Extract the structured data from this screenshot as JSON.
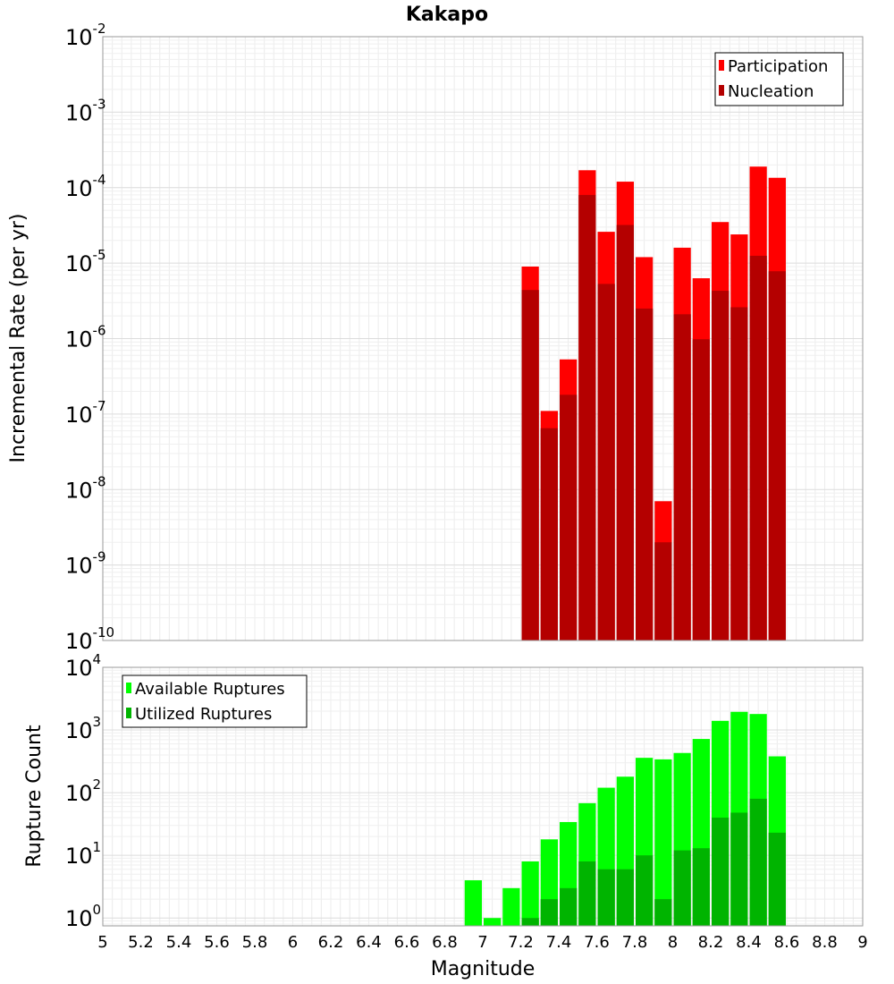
{
  "chart_data": [
    {
      "type": "bar",
      "title": "Kakapo",
      "xlabel": "",
      "ylabel": "Incremental Rate (per yr)",
      "yscale": "log",
      "ylim": [
        1e-10,
        0.01
      ],
      "xlim": [
        5,
        9
      ],
      "grid": true,
      "legend_position": "top-right",
      "bar_width": 0.1,
      "x": [
        7.25,
        7.35,
        7.45,
        7.55,
        7.65,
        7.75,
        7.85,
        7.95,
        8.05,
        8.15,
        8.25,
        8.35,
        8.45,
        8.55
      ],
      "series": [
        {
          "name": "Participation",
          "color": "#ff0000",
          "values": [
            9e-06,
            1.1e-07,
            5.3e-07,
            0.00017,
            2.6e-05,
            0.00012,
            1.2e-05,
            7e-09,
            1.6e-05,
            6.3e-06,
            3.5e-05,
            2.4e-05,
            0.00019,
            0.000135
          ]
        },
        {
          "name": "Nucleation",
          "color": "#b40000",
          "values": [
            4.4e-06,
            6.5e-08,
            1.8e-07,
            8e-05,
            5.3e-06,
            3.2e-05,
            2.5e-06,
            2e-09,
            2.1e-06,
            9.8e-07,
            4.3e-06,
            2.6e-06,
            1.25e-05,
            7.8e-06
          ]
        }
      ]
    },
    {
      "type": "bar",
      "title": "",
      "xlabel": "Magnitude",
      "ylabel": "Rupture Count",
      "yscale": "log",
      "ylim": [
        0.75,
        10000
      ],
      "xlim": [
        5,
        9
      ],
      "xticks": [
        "5",
        "5.2",
        "5.4",
        "5.6",
        "5.8",
        "6",
        "6.2",
        "6.4",
        "6.6",
        "6.8",
        "7",
        "7.2",
        "7.4",
        "7.6",
        "7.8",
        "8",
        "8.2",
        "8.4",
        "8.6",
        "8.8",
        "9"
      ],
      "grid": true,
      "legend_position": "top-left",
      "bar_width": 0.1,
      "x": [
        6.95,
        7.05,
        7.15,
        7.25,
        7.35,
        7.45,
        7.55,
        7.65,
        7.75,
        7.85,
        7.95,
        8.05,
        8.15,
        8.25,
        8.35,
        8.45,
        8.55
      ],
      "series": [
        {
          "name": "Available Ruptures",
          "color": "#00ff00",
          "values": [
            4,
            1,
            3,
            8,
            18,
            34,
            68,
            120,
            180,
            360,
            340,
            430,
            720,
            1400,
            1950,
            1800,
            380
          ]
        },
        {
          "name": "Utilized Ruptures",
          "color": "#00b400",
          "values": [
            0,
            0,
            0,
            1,
            2,
            3,
            8,
            6,
            6,
            10,
            2,
            12,
            13,
            40,
            48,
            80,
            23
          ]
        }
      ]
    }
  ]
}
